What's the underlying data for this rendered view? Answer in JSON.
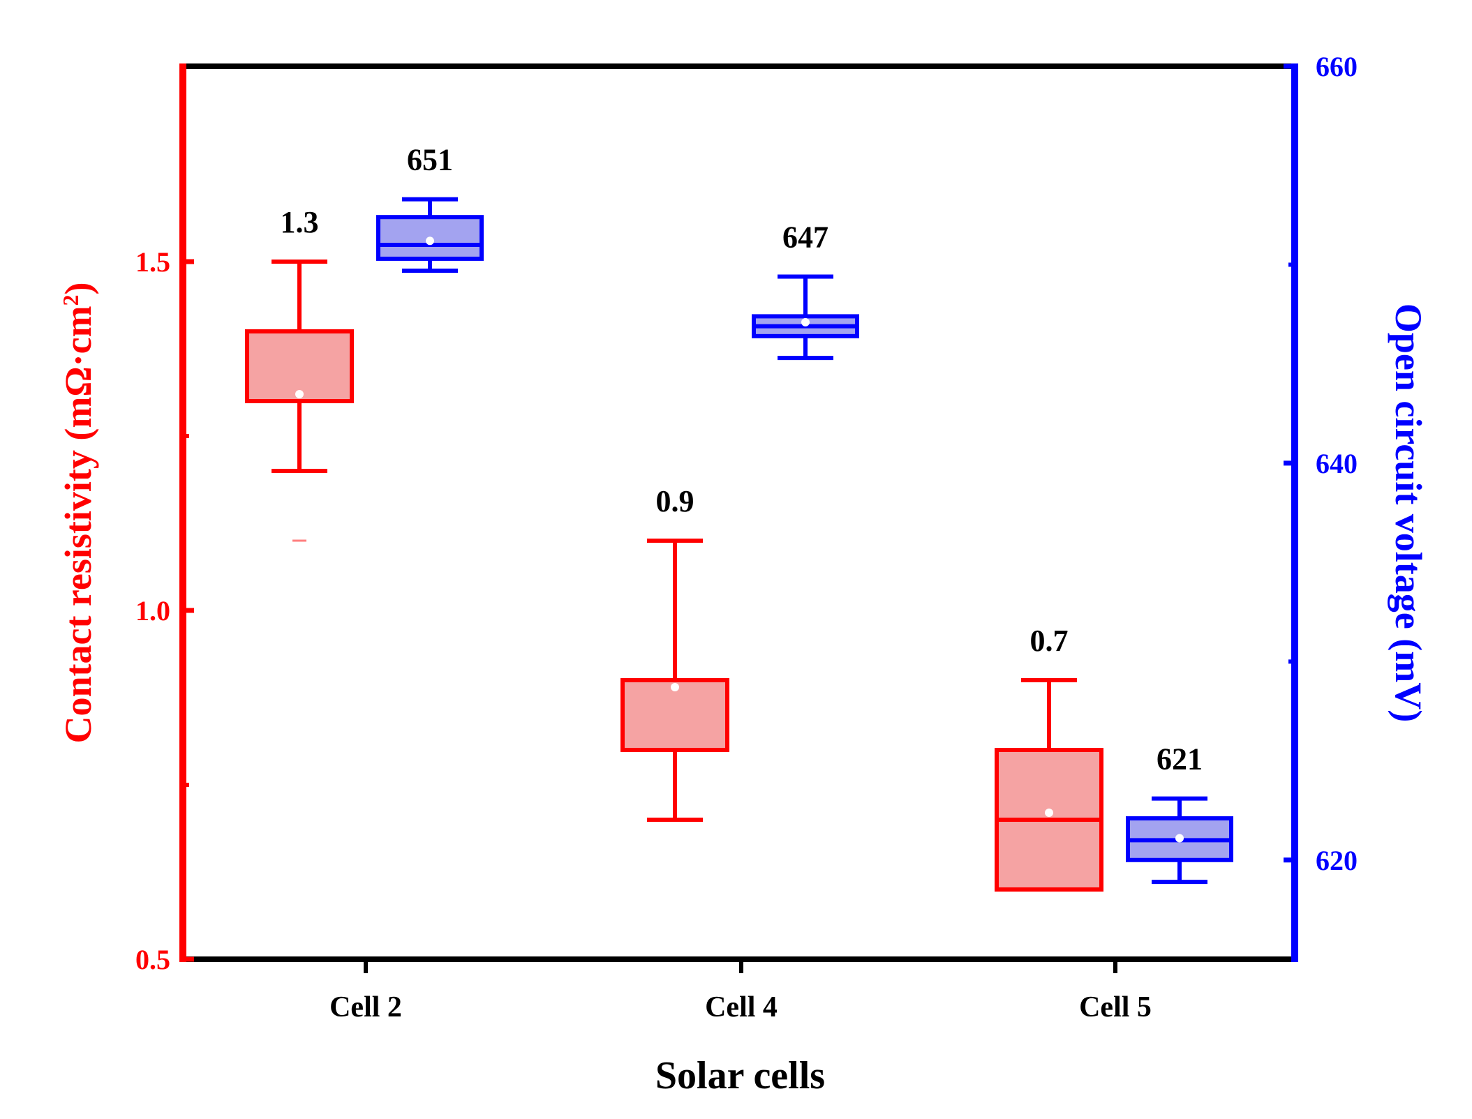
{
  "colors": {
    "left_axis": "#ff0000",
    "right_axis": "#0000ff",
    "frame": "#000000",
    "red_fill": "#f5a3a3",
    "blue_fill": "#a3a3f0",
    "label": "#000000"
  },
  "chart_data": {
    "type": "box",
    "xlabel": "Solar cells",
    "ylabel_left_main": "Contact resistivity (mΩ·cm",
    "ylabel_left_sup": "2",
    "ylabel_left_close": ")",
    "ylabel_right": "Open circuit voltage (mV)",
    "categories": [
      "Cell 2",
      "Cell 4",
      "Cell 5"
    ],
    "left_axis": {
      "range": [
        0.5,
        1.78
      ],
      "ticks": [
        0.5,
        1.0,
        1.5
      ],
      "tick_labels": [
        "0.5",
        "1.0",
        "1.5"
      ],
      "minor_ticks": [
        0.75,
        1.25
      ]
    },
    "right_axis": {
      "range": [
        615,
        660
      ],
      "ticks": [
        620,
        640,
        660
      ],
      "tick_labels": [
        "620",
        "640",
        "660"
      ],
      "minor_ticks": [
        630,
        650
      ]
    },
    "series": [
      {
        "name": "Contact resistivity",
        "axis": "left",
        "boxes": [
          {
            "category": "Cell 2",
            "whisker_low": 1.2,
            "q1": 1.3,
            "median": 1.3,
            "q3": 1.4,
            "whisker_high": 1.5,
            "mean": 1.31,
            "outlier": 1.1,
            "label": "1.3"
          },
          {
            "category": "Cell 4",
            "whisker_low": 0.7,
            "q1": 0.8,
            "median": 0.9,
            "q3": 0.9,
            "whisker_high": 1.1,
            "mean": 0.89,
            "outlier": null,
            "label": "0.9"
          },
          {
            "category": "Cell 5",
            "whisker_low": 0.6,
            "q1": 0.6,
            "median": 0.7,
            "q3": 0.8,
            "whisker_high": 0.9,
            "mean": 0.71,
            "outlier": null,
            "label": "0.7"
          }
        ]
      },
      {
        "name": "Open circuit voltage",
        "axis": "right",
        "boxes": [
          {
            "category": "Cell 2",
            "whisker_low": 649.7,
            "q1": 650.3,
            "median": 651,
            "q3": 652.4,
            "whisker_high": 653.3,
            "mean": 651.2,
            "outlier": null,
            "label": "651"
          },
          {
            "category": "Cell 4",
            "whisker_low": 645.3,
            "q1": 646.4,
            "median": 646.9,
            "q3": 647.4,
            "whisker_high": 649.4,
            "mean": 647.1,
            "outlier": null,
            "label": "647"
          },
          {
            "category": "Cell 5",
            "whisker_low": 618.9,
            "q1": 620.0,
            "median": 621.0,
            "q3": 622.1,
            "whisker_high": 623.1,
            "mean": 621.1,
            "outlier": null,
            "label": "621"
          }
        ]
      }
    ]
  }
}
